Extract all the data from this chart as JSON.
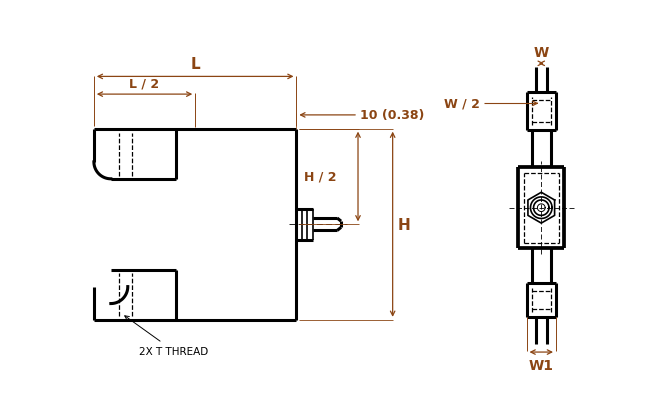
{
  "bg_color": "#ffffff",
  "line_color": "#000000",
  "dim_color": "#8B4513",
  "fig_width": 6.64,
  "fig_height": 4.14,
  "dpi": 100,
  "labels": {
    "L": "L",
    "L2": "L / 2",
    "H2": "H / 2",
    "H": "H",
    "dim10": "10 (0.38)",
    "W": "W",
    "W2": "W / 2",
    "W1": "W1",
    "thread": "2X T THREAD"
  }
}
